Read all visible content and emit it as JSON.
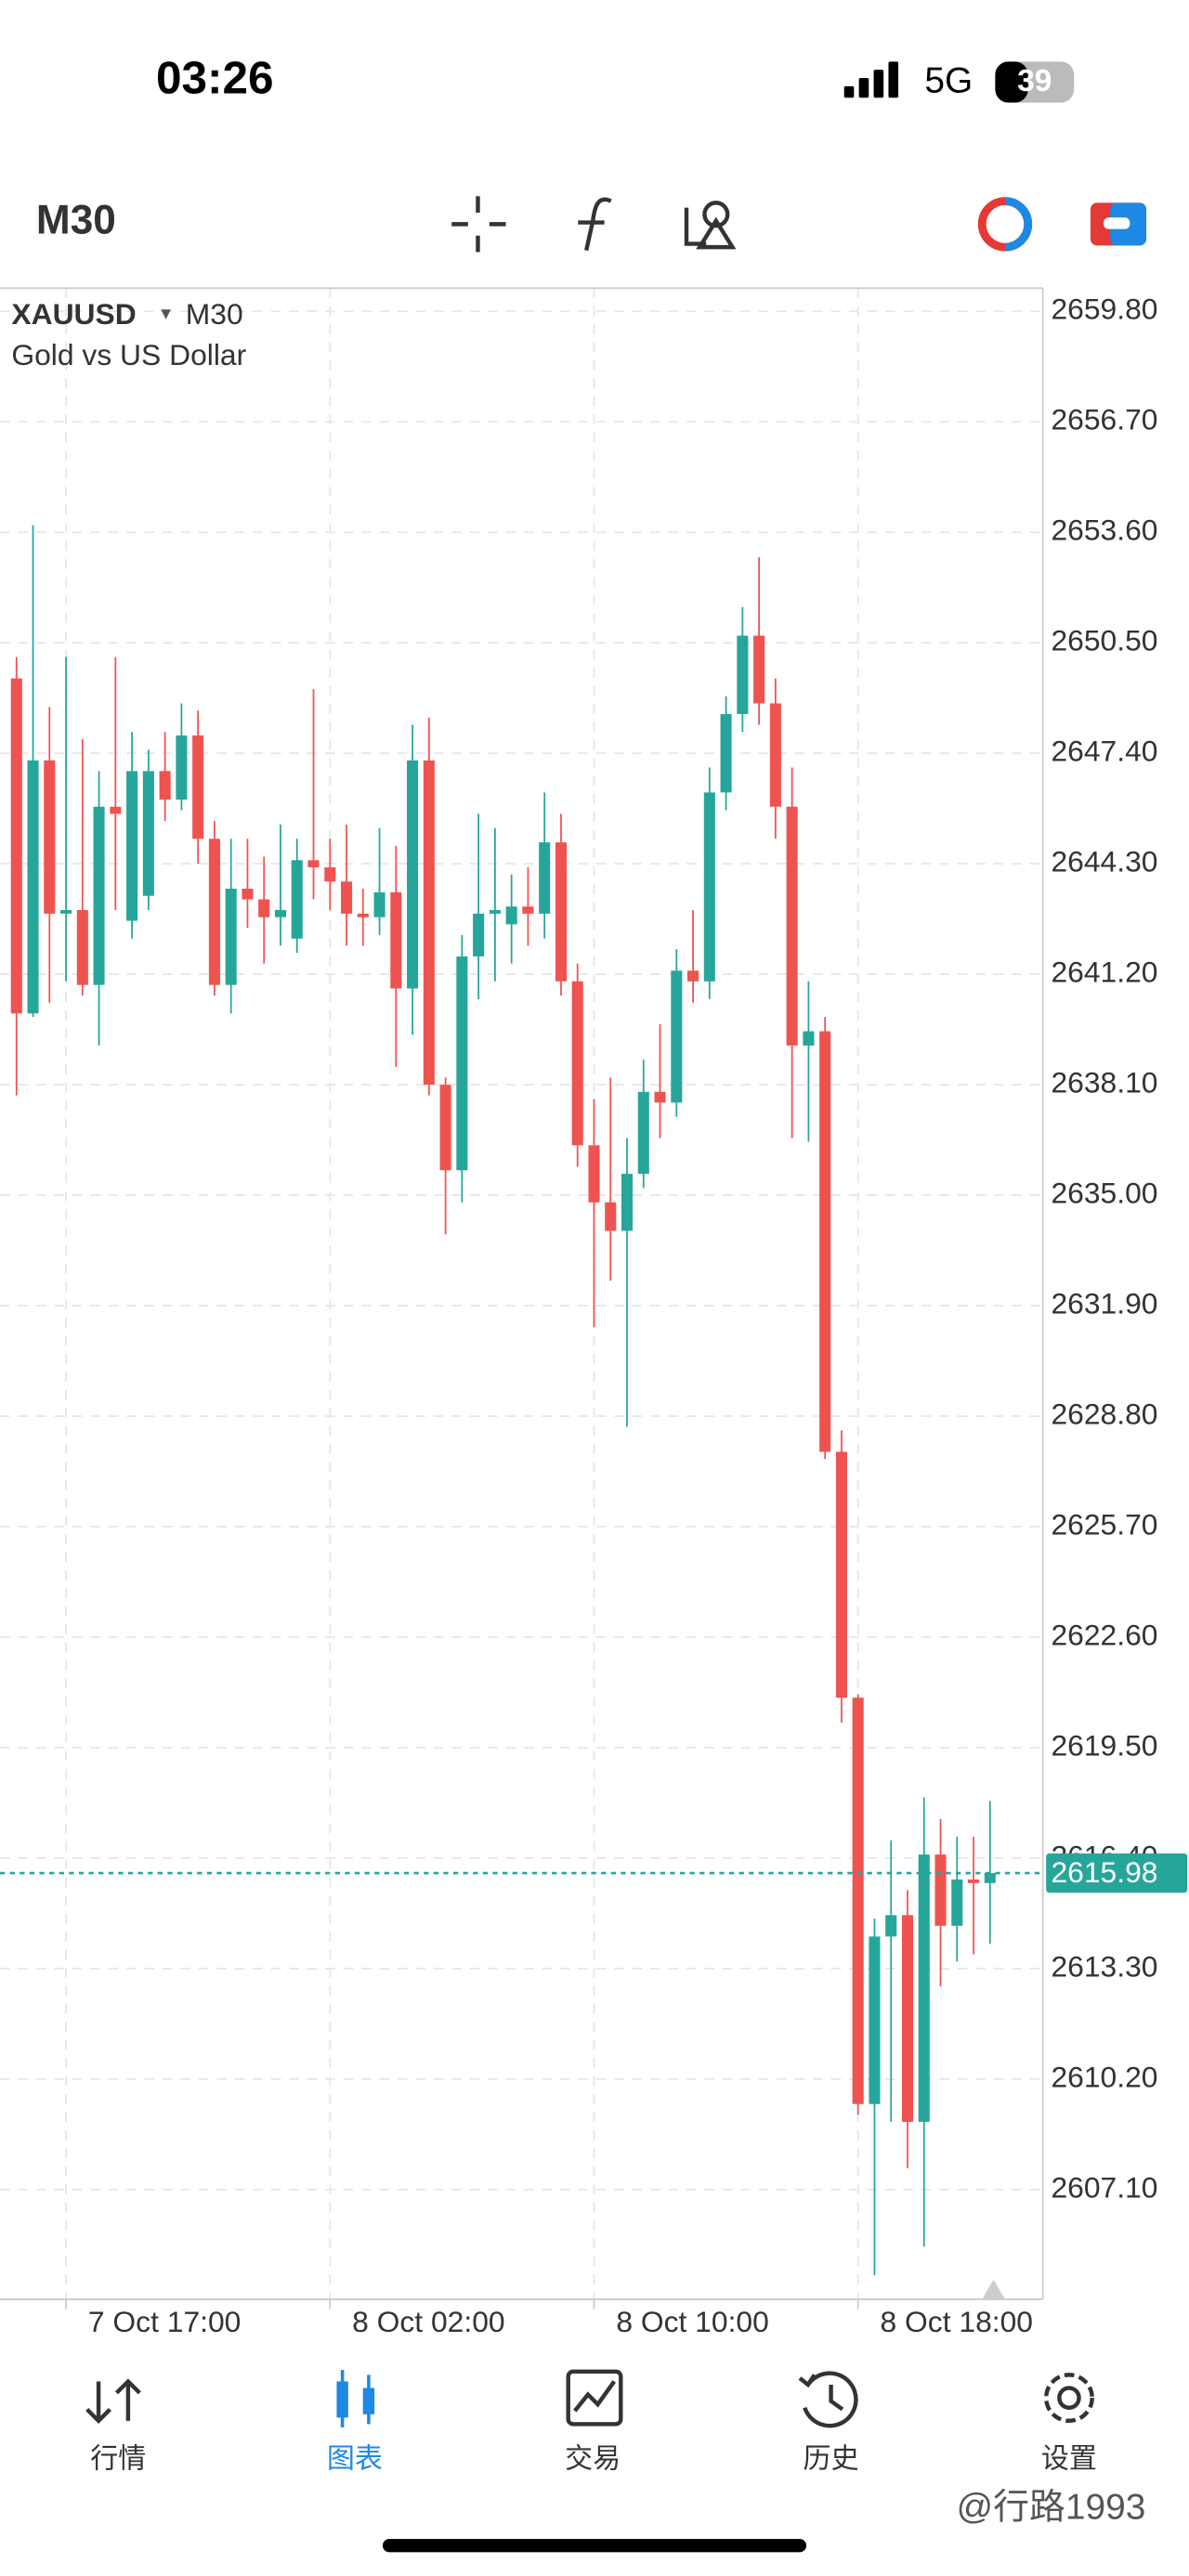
{
  "status_bar": {
    "time": "03:26",
    "network": "5G",
    "battery": "39"
  },
  "toolbar": {
    "timeframe": "M30"
  },
  "legend": {
    "symbol": "XAUUSD",
    "timeframe": "M30",
    "description": "Gold vs US Dollar"
  },
  "chart_data": {
    "type": "candlestick",
    "up_color": "#26a69a",
    "down_color": "#ef5350",
    "grid": true,
    "open": [
      2649.5,
      2640.1,
      2647.2,
      2642.9,
      2643.0,
      2640.9,
      2645.9,
      2642.7,
      2643.4,
      2646.9,
      2646.1,
      2647.9,
      2645.0,
      2640.9,
      2643.6,
      2643.3,
      2642.8,
      2642.2,
      2644.4,
      2644.2,
      2643.8,
      2642.9,
      2642.8,
      2643.5,
      2640.8,
      2647.2,
      2638.1,
      2635.7,
      2641.7,
      2642.9,
      2642.6,
      2643.1,
      2642.9,
      2644.9,
      2641.0,
      2636.4,
      2634.8,
      2634.0,
      2635.6,
      2637.9,
      2637.6,
      2641.3,
      2641.0,
      2646.3,
      2648.5,
      2650.7,
      2648.8,
      2645.9,
      2639.2,
      2639.6,
      2627.8,
      2620.9,
      2609.5,
      2614.2,
      2614.8,
      2609.0,
      2616.5,
      2614.5,
      2615.8,
      2615.7
    ],
    "high": [
      2650.1,
      2653.8,
      2648.7,
      2650.1,
      2647.8,
      2646.9,
      2650.1,
      2648.0,
      2647.5,
      2648.0,
      2648.8,
      2648.6,
      2645.5,
      2645.0,
      2645.0,
      2644.5,
      2645.4,
      2645.0,
      2649.2,
      2645.0,
      2645.4,
      2643.6,
      2645.3,
      2644.8,
      2648.2,
      2648.4,
      2638.3,
      2642.3,
      2645.7,
      2645.3,
      2644.0,
      2644.2,
      2646.3,
      2645.7,
      2641.5,
      2637.7,
      2638.3,
      2636.6,
      2638.8,
      2639.8,
      2641.9,
      2643.0,
      2647.0,
      2649.0,
      2651.5,
      2652.9,
      2649.5,
      2647.0,
      2641.0,
      2640.0,
      2628.4,
      2621.0,
      2614.7,
      2616.9,
      2615.5,
      2618.1,
      2617.5,
      2617.0,
      2617.0,
      2618.0
    ],
    "low": [
      2637.8,
      2640.0,
      2640.4,
      2641.0,
      2640.6,
      2639.2,
      2643.0,
      2642.2,
      2643.0,
      2645.5,
      2645.8,
      2644.3,
      2640.6,
      2640.1,
      2642.5,
      2641.5,
      2642.0,
      2641.8,
      2643.3,
      2643.0,
      2642.0,
      2642.0,
      2642.3,
      2638.6,
      2639.5,
      2637.8,
      2633.9,
      2634.8,
      2640.5,
      2641.0,
      2641.5,
      2642.0,
      2642.2,
      2640.6,
      2635.8,
      2631.3,
      2632.6,
      2628.5,
      2635.2,
      2636.6,
      2637.2,
      2640.4,
      2640.5,
      2645.8,
      2648.0,
      2648.2,
      2645.0,
      2636.6,
      2636.5,
      2627.6,
      2620.2,
      2609.2,
      2604.7,
      2609.0,
      2607.7,
      2605.5,
      2612.8,
      2613.5,
      2613.7,
      2614.0
    ],
    "close": [
      2640.1,
      2647.2,
      2642.9,
      2643.0,
      2640.9,
      2645.9,
      2645.7,
      2646.9,
      2646.9,
      2646.1,
      2647.9,
      2645.0,
      2640.9,
      2643.6,
      2643.3,
      2642.8,
      2643.0,
      2644.4,
      2644.2,
      2643.8,
      2642.9,
      2642.8,
      2643.5,
      2640.8,
      2647.2,
      2638.1,
      2635.7,
      2641.7,
      2642.9,
      2643.0,
      2643.1,
      2642.9,
      2644.9,
      2641.0,
      2636.4,
      2634.8,
      2634.0,
      2635.6,
      2637.9,
      2637.6,
      2641.3,
      2641.0,
      2646.3,
      2648.5,
      2650.7,
      2648.8,
      2645.9,
      2639.2,
      2639.6,
      2627.8,
      2620.9,
      2609.5,
      2614.2,
      2614.8,
      2609.0,
      2616.5,
      2614.5,
      2615.8,
      2615.7,
      2615.98
    ],
    "xlim": [
      -1,
      62.2
    ],
    "xticks": [
      {
        "value": 3,
        "label": "7 Oct 17:00"
      },
      {
        "value": 19,
        "label": "8 Oct 02:00"
      },
      {
        "value": 35,
        "label": "8 Oct 10:00"
      },
      {
        "value": 51,
        "label": "8 Oct 18:00"
      }
    ],
    "ylim": [
      2604.02,
      2660.45
    ],
    "yticks": [
      {
        "value": 2659.8,
        "label": "2659.80"
      },
      {
        "value": 2656.7,
        "label": "2656.70"
      },
      {
        "value": 2653.6,
        "label": "2653.60"
      },
      {
        "value": 2650.5,
        "label": "2650.50"
      },
      {
        "value": 2647.4,
        "label": "2647.40"
      },
      {
        "value": 2644.3,
        "label": "2644.30"
      },
      {
        "value": 2641.2,
        "label": "2641.20"
      },
      {
        "value": 2638.1,
        "label": "2638.10"
      },
      {
        "value": 2635.0,
        "label": "2635.00"
      },
      {
        "value": 2631.9,
        "label": "2631.90"
      },
      {
        "value": 2628.8,
        "label": "2628.80"
      },
      {
        "value": 2625.7,
        "label": "2625.70"
      },
      {
        "value": 2622.6,
        "label": "2622.60"
      },
      {
        "value": 2619.5,
        "label": "2619.50"
      },
      {
        "value": 2616.4,
        "label": "2616.40"
      },
      {
        "value": 2613.3,
        "label": "2613.30"
      },
      {
        "value": 2610.2,
        "label": "2610.20"
      },
      {
        "value": 2607.1,
        "label": "2607.10"
      }
    ],
    "last_price": 2615.98
  },
  "nav": [
    "行情",
    "图表",
    "交易",
    "历史",
    "设置"
  ],
  "watermark": "@行路1993"
}
